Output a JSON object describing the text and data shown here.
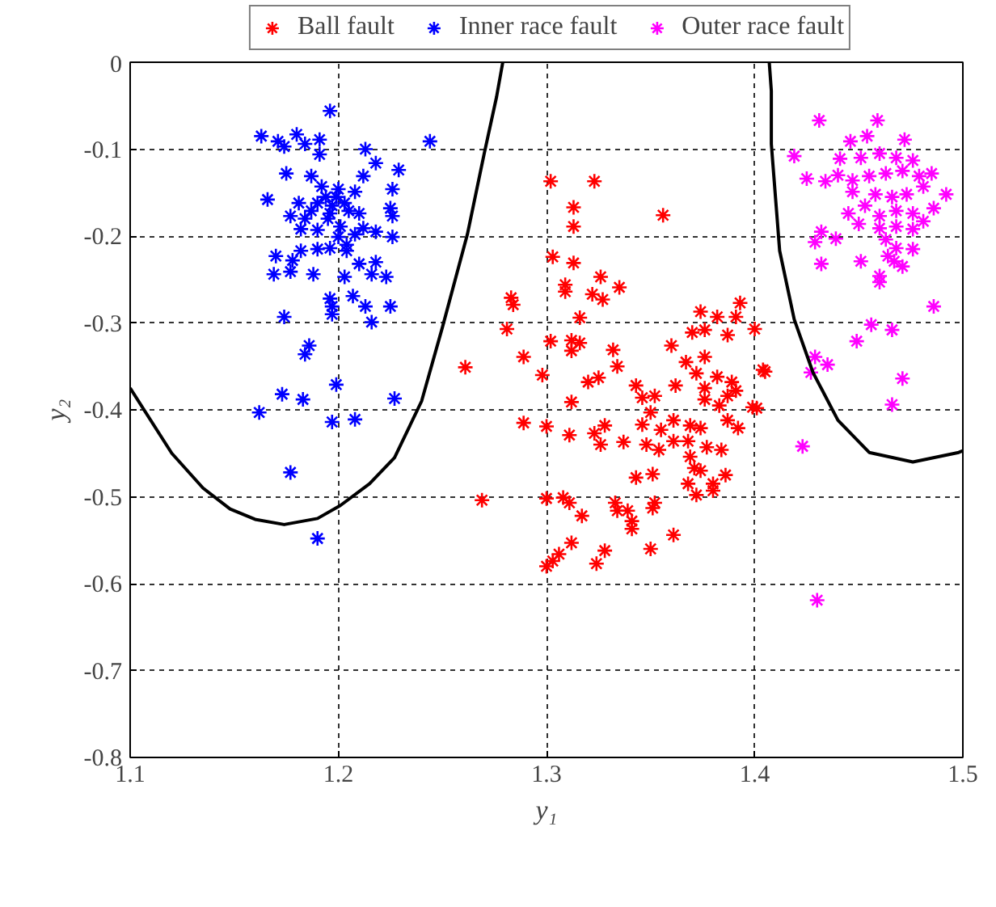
{
  "chart_data": {
    "type": "scatter",
    "xlabel": "y₁",
    "ylabel": "y₂",
    "xlim": [
      1.1,
      1.5
    ],
    "ylim": [
      -0.8,
      0
    ],
    "xticks": [
      1.1,
      1.2,
      1.3,
      1.4,
      1.5
    ],
    "yticks": [
      0,
      -0.1,
      -0.2,
      -0.3,
      -0.4,
      -0.5,
      -0.6,
      -0.7,
      -0.8
    ],
    "grid": true,
    "legend": "top",
    "marker": "cross",
    "line_style": "solid",
    "series": [
      {
        "name": "Ball fault",
        "color": "#ff0000",
        "x": [
          1.302,
          1.323,
          1.313,
          1.313,
          1.356,
          1.303,
          1.313,
          1.326,
          1.335,
          1.309,
          1.309,
          1.322,
          1.327,
          1.283,
          1.284,
          1.316,
          1.281,
          1.302,
          1.312,
          1.316,
          1.312,
          1.332,
          1.334,
          1.289,
          1.261,
          1.298,
          1.32,
          1.325,
          1.312,
          1.343,
          1.346,
          1.352,
          1.35,
          1.362,
          1.36,
          1.367,
          1.372,
          1.374,
          1.37,
          1.376,
          1.382,
          1.393,
          1.391,
          1.387,
          1.4,
          1.376,
          1.376,
          1.376,
          1.382,
          1.389,
          1.391,
          1.387,
          1.383,
          1.399,
          1.404,
          1.289,
          1.3,
          1.311,
          1.323,
          1.328,
          1.326,
          1.337,
          1.346,
          1.355,
          1.348,
          1.354,
          1.361,
          1.369,
          1.374,
          1.361,
          1.368,
          1.377,
          1.384,
          1.387,
          1.392,
          1.369,
          1.371,
          1.374,
          1.386,
          1.351,
          1.343,
          1.38,
          1.368,
          1.38,
          1.372,
          1.269,
          1.3,
          1.308,
          1.311,
          1.333,
          1.352,
          1.351,
          1.334,
          1.339,
          1.341,
          1.341,
          1.317,
          1.361,
          1.312,
          1.328,
          1.35,
          1.306,
          1.303,
          1.3,
          1.324,
          1.405,
          1.401
        ],
        "values": [
          -0.137,
          -0.137,
          -0.167,
          -0.189,
          -0.176,
          -0.224,
          -0.231,
          -0.247,
          -0.259,
          -0.256,
          -0.264,
          -0.267,
          -0.273,
          -0.271,
          -0.279,
          -0.294,
          -0.307,
          -0.321,
          -0.32,
          -0.323,
          -0.332,
          -0.331,
          -0.35,
          -0.339,
          -0.351,
          -0.36,
          -0.368,
          -0.363,
          -0.391,
          -0.372,
          -0.386,
          -0.384,
          -0.403,
          -0.372,
          -0.326,
          -0.345,
          -0.358,
          -0.287,
          -0.311,
          -0.308,
          -0.293,
          -0.277,
          -0.293,
          -0.314,
          -0.307,
          -0.339,
          -0.375,
          -0.388,
          -0.362,
          -0.368,
          -0.378,
          -0.384,
          -0.395,
          -0.397,
          -0.354,
          -0.415,
          -0.419,
          -0.429,
          -0.427,
          -0.418,
          -0.44,
          -0.437,
          -0.417,
          -0.423,
          -0.44,
          -0.446,
          -0.412,
          -0.418,
          -0.421,
          -0.436,
          -0.436,
          -0.443,
          -0.446,
          -0.412,
          -0.421,
          -0.454,
          -0.467,
          -0.47,
          -0.475,
          -0.474,
          -0.478,
          -0.485,
          -0.485,
          -0.493,
          -0.498,
          -0.504,
          -0.502,
          -0.501,
          -0.507,
          -0.507,
          -0.507,
          -0.513,
          -0.516,
          -0.516,
          -0.528,
          -0.537,
          -0.522,
          -0.544,
          -0.553,
          -0.562,
          -0.56,
          -0.566,
          -0.574,
          -0.58,
          -0.577,
          -0.356,
          -0.398
        ]
      },
      {
        "name": "Inner race fault",
        "color": "#0000ff",
        "x": [
          1.196,
          1.163,
          1.171,
          1.18,
          1.191,
          1.174,
          1.184,
          1.244,
          1.191,
          1.213,
          1.218,
          1.229,
          1.175,
          1.187,
          1.212,
          1.226,
          1.166,
          1.181,
          1.192,
          1.2,
          1.208,
          1.19,
          1.197,
          1.205,
          1.225,
          1.177,
          1.184,
          1.195,
          1.21,
          1.226,
          1.182,
          1.19,
          1.201,
          1.212,
          1.218,
          1.226,
          1.17,
          1.178,
          1.182,
          1.19,
          1.196,
          1.204,
          1.21,
          1.218,
          1.177,
          1.169,
          1.188,
          1.203,
          1.216,
          1.223,
          1.196,
          1.197,
          1.207,
          1.213,
          1.225,
          1.174,
          1.216,
          1.197,
          1.186,
          1.184,
          1.199,
          1.173,
          1.183,
          1.227,
          1.162,
          1.197,
          1.208,
          1.177,
          1.19,
          1.194,
          1.199,
          1.196,
          1.187,
          1.203,
          1.208,
          1.2,
          1.204
        ],
        "values": [
          -0.056,
          -0.085,
          -0.091,
          -0.083,
          -0.089,
          -0.097,
          -0.094,
          -0.091,
          -0.106,
          -0.1,
          -0.116,
          -0.124,
          -0.128,
          -0.131,
          -0.131,
          -0.146,
          -0.158,
          -0.162,
          -0.143,
          -0.146,
          -0.149,
          -0.162,
          -0.165,
          -0.171,
          -0.168,
          -0.177,
          -0.18,
          -0.18,
          -0.174,
          -0.177,
          -0.192,
          -0.193,
          -0.189,
          -0.191,
          -0.195,
          -0.201,
          -0.223,
          -0.228,
          -0.217,
          -0.215,
          -0.214,
          -0.21,
          -0.232,
          -0.23,
          -0.241,
          -0.244,
          -0.244,
          -0.247,
          -0.244,
          -0.247,
          -0.272,
          -0.281,
          -0.269,
          -0.281,
          -0.281,
          -0.293,
          -0.299,
          -0.29,
          -0.326,
          -0.336,
          -0.371,
          -0.382,
          -0.388,
          -0.387,
          -0.403,
          -0.414,
          -0.411,
          -0.472,
          -0.548,
          -0.155,
          -0.155,
          -0.174,
          -0.171,
          -0.162,
          -0.198,
          -0.201,
          -0.217
        ]
      },
      {
        "name": "Outer race fault",
        "color": "#ff00ff",
        "x": [
          1.431,
          1.459,
          1.419,
          1.446,
          1.454,
          1.472,
          1.441,
          1.451,
          1.46,
          1.468,
          1.476,
          1.485,
          1.425,
          1.434,
          1.44,
          1.447,
          1.455,
          1.463,
          1.471,
          1.479,
          1.481,
          1.492,
          1.447,
          1.458,
          1.466,
          1.473,
          1.486,
          1.445,
          1.453,
          1.46,
          1.468,
          1.476,
          1.481,
          1.45,
          1.46,
          1.468,
          1.476,
          1.432,
          1.429,
          1.439,
          1.463,
          1.468,
          1.476,
          1.464,
          1.471,
          1.467,
          1.432,
          1.451,
          1.46,
          1.46,
          1.486,
          1.456,
          1.466,
          1.449,
          1.429,
          1.435,
          1.427,
          1.471,
          1.466,
          1.423,
          1.43
        ],
        "values": [
          -0.067,
          -0.067,
          -0.108,
          -0.091,
          -0.085,
          -0.089,
          -0.111,
          -0.11,
          -0.105,
          -0.11,
          -0.113,
          -0.128,
          -0.134,
          -0.137,
          -0.13,
          -0.136,
          -0.131,
          -0.128,
          -0.125,
          -0.131,
          -0.143,
          -0.152,
          -0.149,
          -0.152,
          -0.155,
          -0.152,
          -0.168,
          -0.174,
          -0.165,
          -0.177,
          -0.171,
          -0.174,
          -0.183,
          -0.186,
          -0.191,
          -0.189,
          -0.192,
          -0.195,
          -0.207,
          -0.203,
          -0.204,
          -0.214,
          -0.215,
          -0.223,
          -0.235,
          -0.229,
          -0.232,
          -0.229,
          -0.246,
          -0.253,
          -0.281,
          -0.302,
          -0.308,
          -0.321,
          -0.339,
          -0.348,
          -0.357,
          -0.364,
          -0.394,
          -0.442,
          -0.619
        ]
      },
      {
        "type": "line",
        "marker": "none",
        "color": "#000000",
        "x": [
          1.1,
          1.12,
          1.135,
          1.148,
          1.16,
          1.174,
          1.19,
          1.201,
          1.215,
          1.227,
          1.24,
          1.25,
          1.262,
          1.27,
          1.276,
          1.279
        ],
        "values": [
          -0.375,
          -0.45,
          -0.49,
          -0.514,
          -0.526,
          -0.532,
          -0.525,
          -0.51,
          -0.485,
          -0.455,
          -0.39,
          -0.305,
          -0.198,
          -0.106,
          -0.04,
          0
        ]
      },
      {
        "type": "line",
        "marker": "none",
        "color": "#000000",
        "x": [
          1.407,
          1.408,
          1.408,
          1.412,
          1.419,
          1.428,
          1.44,
          1.455,
          1.476,
          1.498,
          1.5
        ],
        "values": [
          0,
          -0.033,
          -0.094,
          -0.217,
          -0.296,
          -0.357,
          -0.412,
          -0.449,
          -0.46,
          -0.449,
          -0.447
        ]
      }
    ]
  }
}
